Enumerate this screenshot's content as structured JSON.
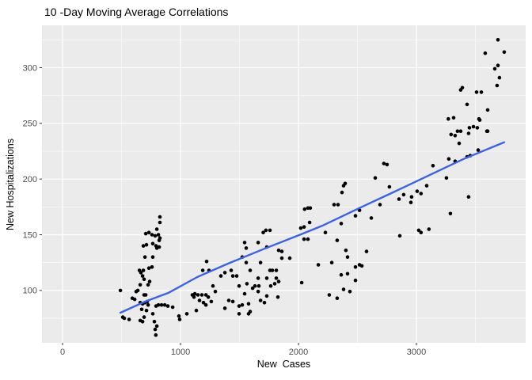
{
  "title": "10 -Day Moving Average Correlations",
  "x_axis_title": "New  Cases",
  "y_axis_title": "New Hospitalizations",
  "colors": {
    "panel_bg": "#EBEBEB",
    "grid_major": "#FFFFFF",
    "grid_minor": "#FFFFFF",
    "tick_text": "#4D4D4D",
    "tick_mark": "#333333",
    "point": "#000000",
    "trend": "#3D63E2"
  },
  "chart_data": {
    "type": "scatter",
    "title": "10 -Day Moving Average Correlations",
    "xlabel": "New  Cases",
    "ylabel": "New Hospitalizations",
    "x_ticks": [
      0,
      1000,
      2000,
      3000
    ],
    "x_minor_ticks": [
      500,
      1500,
      2500,
      3500
    ],
    "y_ticks": [
      100,
      150,
      200,
      250,
      300
    ],
    "y_minor_ticks": [
      75,
      125,
      175,
      225,
      275,
      325
    ],
    "xlim": [
      -175,
      3926
    ],
    "ylim": [
      53,
      338
    ],
    "grid": "white major and minor gridlines on gray panel",
    "legend_position": "none",
    "points": [
      [
        490,
        100
      ],
      [
        510,
        76
      ],
      [
        523,
        75
      ],
      [
        564,
        74
      ],
      [
        591,
        93
      ],
      [
        611,
        92
      ],
      [
        624,
        99
      ],
      [
        638,
        100
      ],
      [
        651,
        118
      ],
      [
        658,
        105
      ],
      [
        658,
        89
      ],
      [
        658,
        73
      ],
      [
        664,
        116
      ],
      [
        671,
        83
      ],
      [
        678,
        113
      ],
      [
        678,
        88
      ],
      [
        678,
        72
      ],
      [
        685,
        140
      ],
      [
        685,
        118
      ],
      [
        691,
        110
      ],
      [
        691,
        96
      ],
      [
        691,
        76
      ],
      [
        698,
        130
      ],
      [
        698,
        89
      ],
      [
        705,
        151
      ],
      [
        705,
        96
      ],
      [
        711,
        141
      ],
      [
        711,
        82
      ],
      [
        718,
        90
      ],
      [
        725,
        105
      ],
      [
        725,
        87
      ],
      [
        732,
        152
      ],
      [
        732,
        120
      ],
      [
        738,
        108
      ],
      [
        758,
        150
      ],
      [
        758,
        121
      ],
      [
        765,
        142
      ],
      [
        765,
        130
      ],
      [
        765,
        79
      ],
      [
        778,
        72
      ],
      [
        785,
        149
      ],
      [
        785,
        65
      ],
      [
        790,
        60
      ],
      [
        792,
        140
      ],
      [
        792,
        86
      ],
      [
        799,
        155
      ],
      [
        799,
        138
      ],
      [
        799,
        68
      ],
      [
        812,
        150
      ],
      [
        812,
        87
      ],
      [
        819,
        145
      ],
      [
        819,
        139
      ],
      [
        825,
        166
      ],
      [
        825,
        161
      ],
      [
        825,
        147
      ],
      [
        839,
        87
      ],
      [
        866,
        87
      ],
      [
        892,
        86
      ],
      [
        933,
        85
      ],
      [
        986,
        77
      ],
      [
        993,
        74
      ],
      [
        1053,
        79
      ],
      [
        1100,
        96
      ],
      [
        1114,
        94
      ],
      [
        1121,
        97
      ],
      [
        1134,
        82
      ],
      [
        1147,
        96
      ],
      [
        1161,
        91
      ],
      [
        1181,
        96
      ],
      [
        1188,
        118
      ],
      [
        1194,
        89
      ],
      [
        1215,
        96
      ],
      [
        1215,
        87
      ],
      [
        1221,
        126
      ],
      [
        1235,
        94
      ],
      [
        1241,
        118
      ],
      [
        1261,
        90
      ],
      [
        1275,
        104
      ],
      [
        1295,
        99
      ],
      [
        1342,
        113
      ],
      [
        1376,
        116
      ],
      [
        1376,
        84
      ],
      [
        1409,
        91
      ],
      [
        1429,
        118
      ],
      [
        1443,
        113
      ],
      [
        1443,
        90
      ],
      [
        1476,
        113
      ],
      [
        1496,
        104
      ],
      [
        1496,
        86
      ],
      [
        1496,
        79
      ],
      [
        1523,
        130
      ],
      [
        1523,
        87
      ],
      [
        1543,
        143
      ],
      [
        1543,
        97
      ],
      [
        1557,
        138
      ],
      [
        1557,
        125
      ],
      [
        1563,
        106
      ],
      [
        1577,
        88
      ],
      [
        1577,
        79
      ],
      [
        1590,
        118
      ],
      [
        1590,
        81
      ],
      [
        1611,
        102
      ],
      [
        1631,
        104
      ],
      [
        1658,
        143
      ],
      [
        1658,
        111
      ],
      [
        1658,
        99
      ],
      [
        1664,
        104
      ],
      [
        1678,
        125
      ],
      [
        1678,
        91
      ],
      [
        1701,
        152
      ],
      [
        1711,
        89
      ],
      [
        1724,
        154
      ],
      [
        1731,
        139
      ],
      [
        1731,
        111
      ],
      [
        1731,
        95
      ],
      [
        1758,
        154
      ],
      [
        1758,
        118
      ],
      [
        1765,
        104
      ],
      [
        1778,
        118
      ],
      [
        1798,
        106
      ],
      [
        1812,
        118
      ],
      [
        1812,
        111
      ],
      [
        1825,
        94
      ],
      [
        1832,
        136
      ],
      [
        1832,
        108
      ],
      [
        1859,
        135
      ],
      [
        1859,
        129
      ],
      [
        1926,
        129
      ],
      [
        2019,
        156
      ],
      [
        2027,
        107
      ],
      [
        2047,
        157
      ],
      [
        2047,
        146
      ],
      [
        2052,
        173
      ],
      [
        2080,
        146
      ],
      [
        2080,
        174
      ],
      [
        2094,
        161
      ],
      [
        2100,
        174
      ],
      [
        2168,
        123
      ],
      [
        2228,
        152
      ],
      [
        2261,
        96
      ],
      [
        2282,
        125
      ],
      [
        2302,
        177
      ],
      [
        2328,
        145
      ],
      [
        2328,
        93
      ],
      [
        2335,
        177
      ],
      [
        2362,
        160
      ],
      [
        2362,
        114
      ],
      [
        2369,
        188
      ],
      [
        2382,
        194
      ],
      [
        2382,
        101
      ],
      [
        2396,
        196
      ],
      [
        2402,
        136
      ],
      [
        2416,
        130
      ],
      [
        2416,
        115
      ],
      [
        2436,
        99
      ],
      [
        2483,
        167
      ],
      [
        2483,
        121
      ],
      [
        2483,
        109
      ],
      [
        2517,
        172
      ],
      [
        2517,
        123
      ],
      [
        2537,
        122
      ],
      [
        2577,
        135
      ],
      [
        2617,
        165
      ],
      [
        2651,
        201
      ],
      [
        2691,
        177
      ],
      [
        2724,
        214
      ],
      [
        2751,
        213
      ],
      [
        2771,
        193
      ],
      [
        2852,
        182
      ],
      [
        2859,
        149
      ],
      [
        2892,
        186
      ],
      [
        2953,
        179
      ],
      [
        2959,
        184
      ],
      [
        3006,
        189
      ],
      [
        3019,
        154
      ],
      [
        3039,
        187
      ],
      [
        3039,
        152
      ],
      [
        3087,
        194
      ],
      [
        3106,
        155
      ],
      [
        3140,
        212
      ],
      [
        3254,
        201
      ],
      [
        3270,
        254
      ],
      [
        3274,
        218
      ],
      [
        3288,
        169
      ],
      [
        3294,
        240
      ],
      [
        3315,
        255
      ],
      [
        3328,
        239
      ],
      [
        3328,
        216
      ],
      [
        3348,
        243
      ],
      [
        3362,
        232
      ],
      [
        3375,
        280
      ],
      [
        3375,
        243
      ],
      [
        3389,
        282
      ],
      [
        3429,
        267
      ],
      [
        3429,
        220
      ],
      [
        3442,
        241
      ],
      [
        3442,
        184
      ],
      [
        3449,
        246
      ],
      [
        3456,
        221
      ],
      [
        3483,
        247
      ],
      [
        3510,
        278
      ],
      [
        3516,
        246
      ],
      [
        3523,
        226
      ],
      [
        3530,
        254
      ],
      [
        3537,
        253
      ],
      [
        3550,
        278
      ],
      [
        3583,
        313
      ],
      [
        3597,
        243
      ],
      [
        3604,
        262
      ],
      [
        3604,
        243
      ],
      [
        3664,
        299
      ],
      [
        3684,
        284
      ],
      [
        3691,
        325
      ],
      [
        3691,
        302
      ],
      [
        3704,
        291
      ],
      [
        3744,
        314
      ]
    ],
    "trend_line": {
      "label": "smooth trend (loess)",
      "color": "#3D63E2",
      "points": [
        [
          490,
          80
        ],
        [
          700,
          90
        ],
        [
          900,
          98
        ],
        [
          1141,
          112
        ],
        [
          1400,
          124
        ],
        [
          1700,
          137
        ],
        [
          1966,
          148
        ],
        [
          2200,
          158
        ],
        [
          2537,
          175
        ],
        [
          2800,
          188
        ],
        [
          3141,
          205
        ],
        [
          3400,
          218
        ],
        [
          3744,
          233
        ]
      ]
    }
  }
}
